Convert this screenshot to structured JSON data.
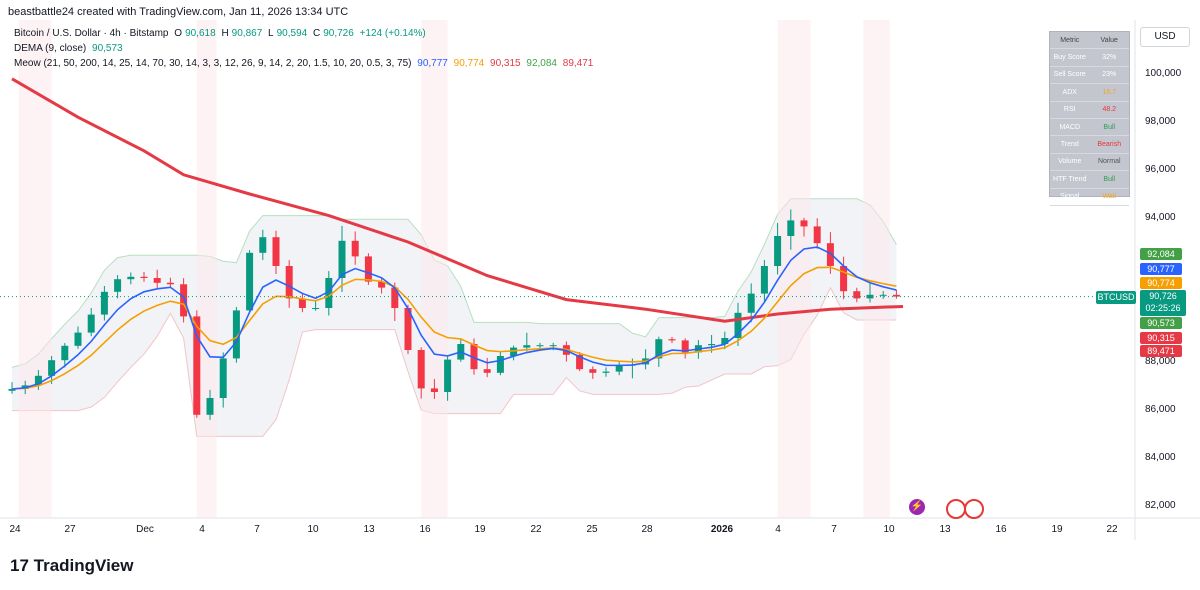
{
  "header": {
    "credit": "beastbattle24 created with TradingView.com, Jan 11, 2026 13:34 UTC",
    "symbol_line": "Bitcoin / U.S. Dollar · 4h · Bitstamp",
    "o_label": "O",
    "o_val": "90,618",
    "h_label": "H",
    "h_val": "90,867",
    "l_label": "L",
    "l_val": "90,594",
    "c_label": "C",
    "c_val": "90,726",
    "change": "+124 (+0.14%)",
    "dema_label": "DEMA (9, close)",
    "dema_val": "90,573",
    "meow_label": "Meow (21, 50, 200, 14, 25, 14, 70, 30, 14, 3, 3, 12, 26, 9, 14, 2, 20, 1.5, 10, 20, 0.5, 3, 75)",
    "meow_v1": "90,777",
    "meow_v2": "90,774",
    "meow_v3": "90,315",
    "meow_v4": "92,084",
    "meow_v5": "89,471"
  },
  "currency": "USD",
  "table": {
    "head": [
      "Metric",
      "Value"
    ],
    "rows": [
      {
        "k": "Buy Score",
        "v": "32%",
        "c": "#ffffff"
      },
      {
        "k": "Sell Score",
        "v": "23%",
        "c": "#ffffff"
      },
      {
        "k": "ADX",
        "v": "16.7",
        "c": "#f5a623"
      },
      {
        "k": "RSI",
        "v": "48.2",
        "c": "#e53935"
      },
      {
        "k": "MACD",
        "v": "Bull",
        "c": "#2e9d4f"
      },
      {
        "k": "Trend",
        "v": "Bearish",
        "c": "#e53935"
      },
      {
        "k": "Volume",
        "v": "Normal",
        "c": "#555555"
      },
      {
        "k": "HTF Trend",
        "v": "Bull",
        "c": "#2e9d4f"
      },
      {
        "k": "Signal",
        "v": "Wait",
        "c": "#f5a623"
      }
    ]
  },
  "price_axis": [
    "100,000",
    "98,000",
    "96,000",
    "94,000",
    "88,000",
    "86,000",
    "84,000",
    "82,000"
  ],
  "price_tags": {
    "t1": "92,084",
    "t2": "90,777",
    "t3": "90,774",
    "last": "90,726",
    "countdown": "02:25:26",
    "t4": "90,573",
    "t5": "90,315",
    "t6": "89,471",
    "btc": "BTCUSD"
  },
  "time_axis": [
    {
      "l": "24",
      "b": false
    },
    {
      "l": "27",
      "b": false
    },
    {
      "l": "Dec",
      "b": false
    },
    {
      "l": "4",
      "b": false
    },
    {
      "l": "7",
      "b": false
    },
    {
      "l": "10",
      "b": false
    },
    {
      "l": "13",
      "b": false
    },
    {
      "l": "16",
      "b": false
    },
    {
      "l": "19",
      "b": false
    },
    {
      "l": "22",
      "b": false
    },
    {
      "l": "25",
      "b": false
    },
    {
      "l": "28",
      "b": false
    },
    {
      "l": "2026",
      "b": true
    },
    {
      "l": "4",
      "b": false
    },
    {
      "l": "7",
      "b": false
    },
    {
      "l": "10",
      "b": false
    },
    {
      "l": "13",
      "b": false
    },
    {
      "l": "16",
      "b": false
    },
    {
      "l": "19",
      "b": false
    },
    {
      "l": "22",
      "b": false
    }
  ],
  "logo_text": "TradingView",
  "colors": {
    "up": "#089981",
    "down": "#f23645",
    "ema_blue": "#2962ff",
    "ema_orange": "#f59f00",
    "sma_red": "#e53945",
    "green_tag": "#43a047"
  },
  "chart_data": {
    "type": "candlestick",
    "title": "Bitcoin / U.S. Dollar · 4h · Bitstamp",
    "y_axis_ticks": [
      82000,
      84000,
      86000,
      88000,
      94000,
      96000,
      98000,
      100000
    ],
    "ylim": [
      81600,
      101800
    ],
    "x_ticks": [
      "24",
      "27",
      "Dec",
      "4",
      "7",
      "10",
      "13",
      "16",
      "19",
      "22",
      "25",
      "28",
      "2026",
      "4",
      "7",
      "10",
      "13",
      "16",
      "19",
      "22"
    ],
    "close_path": [
      [
        0,
        86800
      ],
      [
        2,
        87100
      ],
      [
        4,
        88400
      ],
      [
        6,
        89500
      ],
      [
        8,
        91400
      ],
      [
        10,
        91600
      ],
      [
        12,
        91200
      ],
      [
        13.3,
        91300
      ],
      [
        14,
        86400
      ],
      [
        15,
        85200
      ],
      [
        16,
        87800
      ],
      [
        17,
        88500
      ],
      [
        18,
        91800
      ],
      [
        19,
        93300
      ],
      [
        20,
        93100
      ],
      [
        21,
        90900
      ],
      [
        22,
        90400
      ],
      [
        23,
        90100
      ],
      [
        24,
        90400
      ],
      [
        25,
        92600
      ],
      [
        26,
        93500
      ],
      [
        27,
        91300
      ],
      [
        28,
        91400
      ],
      [
        29,
        90800
      ],
      [
        30,
        89700
      ],
      [
        31,
        87300
      ],
      [
        32,
        86500
      ],
      [
        33,
        87000
      ],
      [
        34,
        89200
      ],
      [
        35,
        88300
      ],
      [
        36,
        87100
      ],
      [
        37,
        88000
      ],
      [
        38,
        88500
      ],
      [
        39,
        88700
      ],
      [
        40,
        88700
      ],
      [
        41,
        88700
      ],
      [
        42,
        88700
      ],
      [
        43,
        87900
      ],
      [
        44,
        87500
      ],
      [
        45,
        87600
      ],
      [
        46,
        87600
      ],
      [
        47,
        88100
      ],
      [
        48,
        87700
      ],
      [
        49,
        88600
      ],
      [
        50,
        89300
      ],
      [
        51,
        88500
      ],
      [
        52,
        88300
      ],
      [
        53,
        89100
      ],
      [
        54,
        88400
      ],
      [
        55,
        89600
      ],
      [
        56,
        90500
      ],
      [
        57,
        91200
      ],
      [
        58,
        92800
      ],
      [
        59,
        93700
      ],
      [
        60,
        94100
      ],
      [
        61,
        93200
      ],
      [
        62,
        92700
      ],
      [
        63,
        91300
      ],
      [
        64,
        90600
      ],
      [
        65,
        90700
      ],
      [
        66,
        90900
      ],
      [
        67,
        90700
      ],
      [
        67.5,
        90726
      ]
    ],
    "ema_blue_last": 90777,
    "ema_orange_last": 90774,
    "dema_last": 90573,
    "sma_red_last": 90315,
    "band_upper_last": 92084,
    "band_lower_last": 89471,
    "last_price": 90726,
    "grid": true
  }
}
